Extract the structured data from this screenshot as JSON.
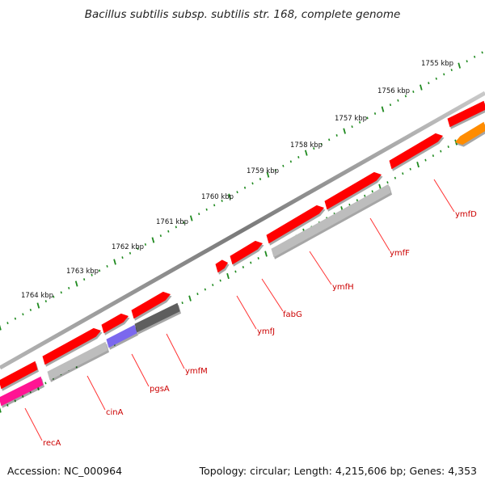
{
  "title": "Bacillus subtilis subsp. subtilis str. 168, complete genome",
  "footer": {
    "accession": "Accession: NC_000964",
    "summary": "Topology: circular; Length: 4,215,606 bp; Genes: 4,353"
  },
  "colors": {
    "backbone": "#8a8a8a",
    "ruler": "#1f8a1f",
    "gene_label": "#cc0000",
    "leader_line": "#ff3333",
    "cds": "#ff0000",
    "gray": "#bdbdbd",
    "dark_gray": "#5e5e5e",
    "purple": "#7b68ee",
    "magenta": "#ff1493",
    "orange": "#ff8c00"
  },
  "ruler_labels": [
    "1755 kbp",
    "1756 kbp",
    "1757 kbp",
    "1758 kbp",
    "1759 kbp",
    "1760 kbp",
    "1761 kbp",
    "1762 kbp",
    "1763 kbp",
    "1764 kbp"
  ],
  "gene_labels": [
    "ymfD",
    "ymfF",
    "ymfH",
    "fabG",
    "ymfJ",
    "ymfM",
    "pgsA",
    "cinA",
    "recA"
  ]
}
